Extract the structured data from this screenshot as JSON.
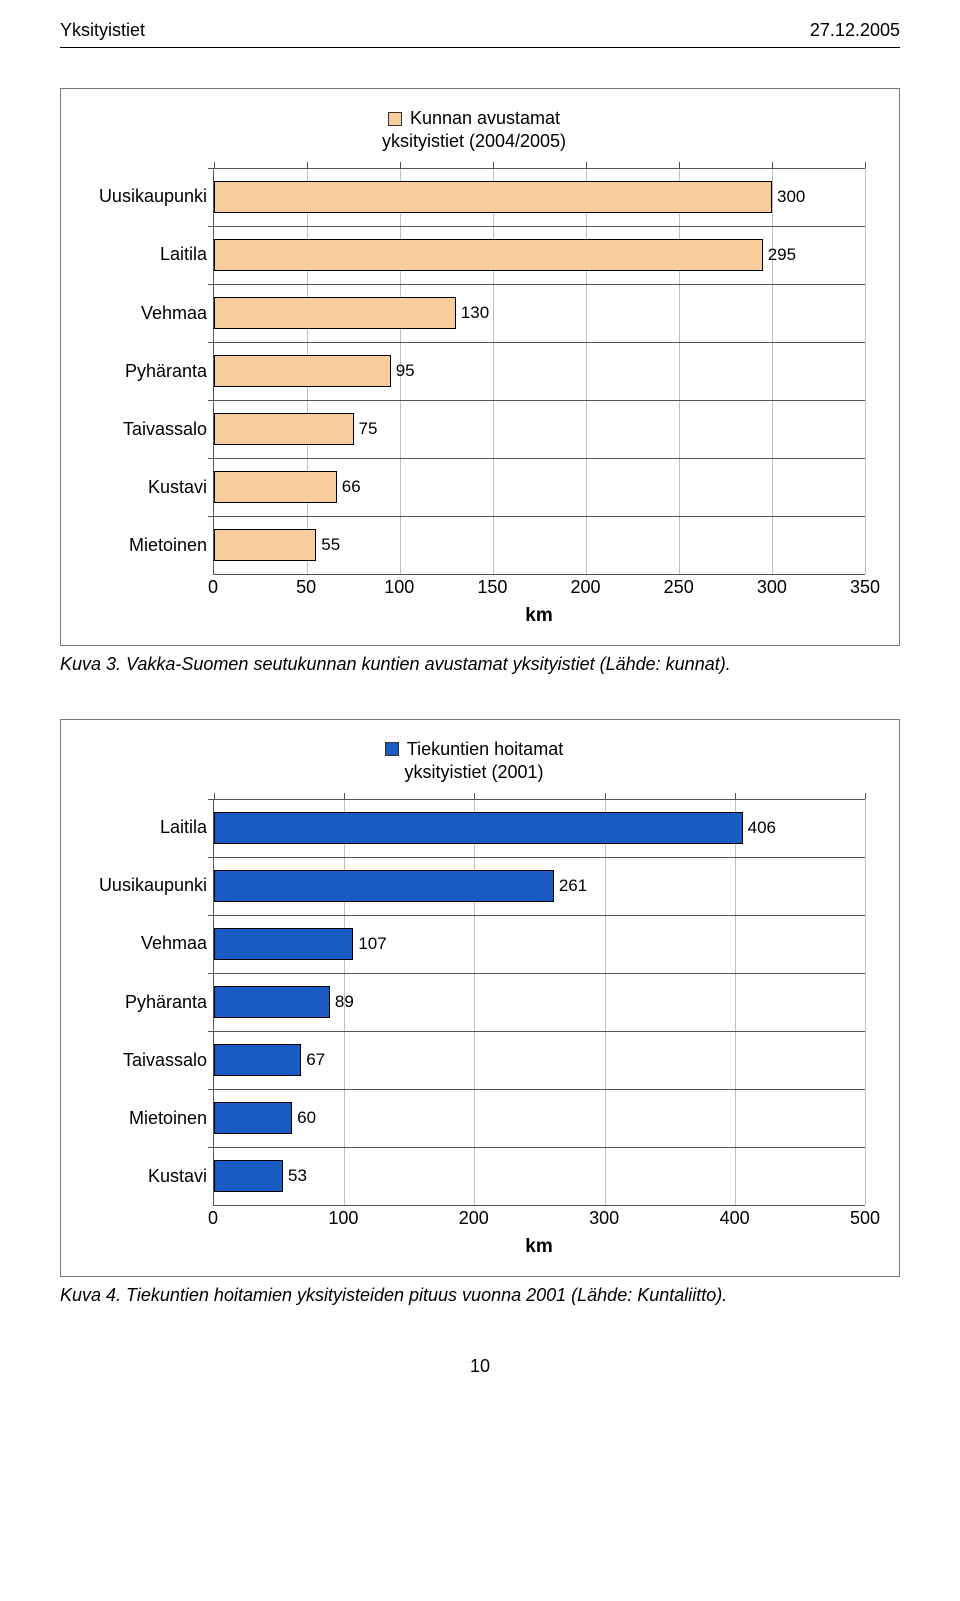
{
  "header": {
    "left": "Yksityistiet",
    "right": "27.12.2005"
  },
  "chart1": {
    "legend1": "Kunnan avustamat",
    "legend2": "yksityistiet (2004/2005)",
    "swatch_color": "#f7cd9c",
    "categories": [
      "Uusikaupunki",
      "Laitila",
      "Vehmaa",
      "Pyhäranta",
      "Taivassalo",
      "Kustavi",
      "Mietoinen"
    ],
    "values": [
      300,
      295,
      130,
      95,
      75,
      66,
      55
    ],
    "bar_color": "#f7cd9c",
    "bar_border": "#000000",
    "xlim_max": 350,
    "xticks": [
      0,
      50,
      100,
      150,
      200,
      250,
      300,
      350
    ],
    "axis_title": "km",
    "label_width": 130
  },
  "caption1": "Kuva 3. Vakka-Suomen seutukunnan kuntien avustamat yksityistiet (Lähde: kunnat).",
  "chart2": {
    "legend1": "Tiekuntien hoitamat",
    "legend2": "yksityistiet (2001)",
    "swatch_color": "#1b5bc4",
    "categories": [
      "Laitila",
      "Uusikaupunki",
      "Vehmaa",
      "Pyhäranta",
      "Taivassalo",
      "Mietoinen",
      "Kustavi"
    ],
    "values": [
      406,
      261,
      107,
      89,
      67,
      60,
      53
    ],
    "bar_color": "#1b5bc4",
    "bar_border": "#000000",
    "xlim_max": 500,
    "xticks": [
      0,
      100,
      200,
      300,
      400,
      500
    ],
    "axis_title": "km",
    "label_width": 130
  },
  "caption2": "Kuva 4. Tiekuntien hoitamien yksityisteiden pituus vuonna 2001 (Lähde: Kuntaliitto).",
  "page_number": "10"
}
